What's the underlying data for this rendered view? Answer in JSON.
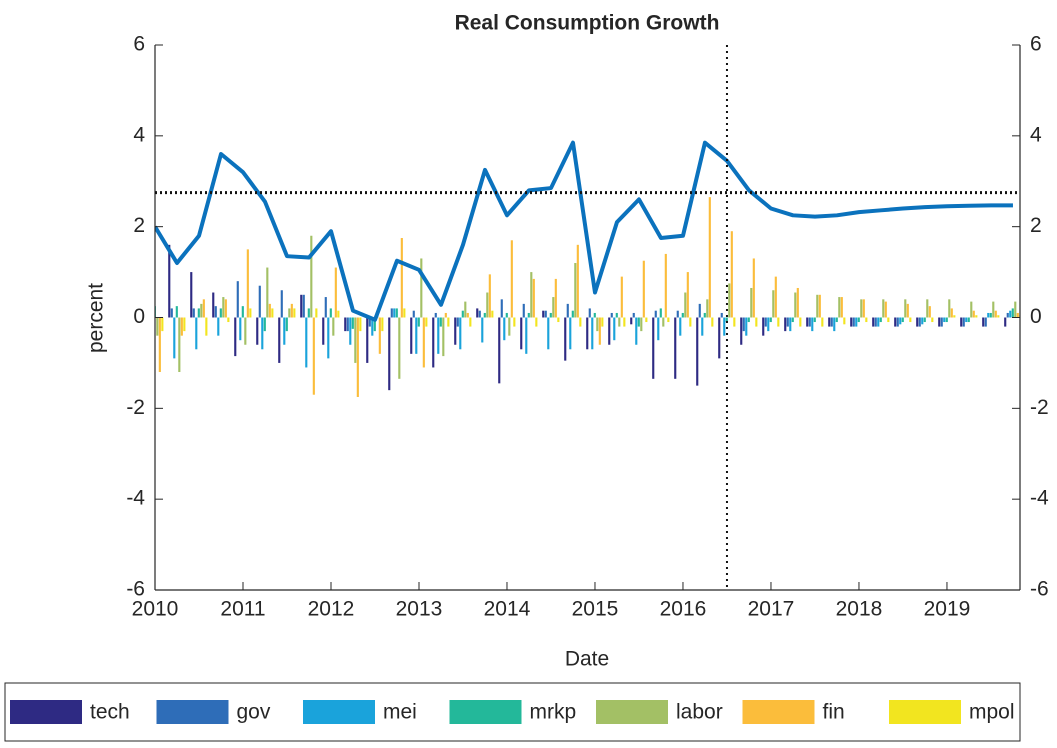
{
  "chart_data": {
    "type": "bar-line",
    "title": "Real Consumption Growth",
    "xlabel": "Date",
    "ylabel": "percent",
    "x": [
      2010,
      2010.25,
      2010.5,
      2010.75,
      2011,
      2011.25,
      2011.5,
      2011.75,
      2012,
      2012.25,
      2012.5,
      2012.75,
      2013,
      2013.25,
      2013.5,
      2013.75,
      2014,
      2014.25,
      2014.5,
      2014.75,
      2015,
      2015.25,
      2015.5,
      2015.75,
      2016,
      2016.25,
      2016.5,
      2016.75,
      2017,
      2017.25,
      2017.5,
      2017.75,
      2018,
      2018.25,
      2018.5,
      2018.75,
      2019,
      2019.25,
      2019.5,
      2019.75
    ],
    "series": [
      {
        "name": "tech",
        "color": "#2e2a83",
        "values": [
          -0.5,
          1.6,
          1.0,
          0.55,
          -0.85,
          -0.6,
          -1.0,
          0.5,
          -0.6,
          -0.3,
          -1.0,
          -1.6,
          -0.8,
          -1.1,
          -0.6,
          0.2,
          -1.45,
          -0.7,
          0.15,
          -0.95,
          -0.7,
          -0.6,
          -0.15,
          -1.35,
          -1.35,
          -1.5,
          -0.9,
          -0.6,
          -0.4,
          -0.3,
          -0.2,
          -0.2,
          -0.2,
          -0.2,
          -0.2,
          -0.2,
          -0.2,
          -0.2,
          -0.2,
          -0.2
        ]
      },
      {
        "name": "gov",
        "color": "#2e6db8",
        "values": [
          -0.3,
          0.2,
          0.2,
          0.25,
          0.8,
          0.7,
          0.6,
          0.5,
          0.45,
          -0.3,
          -0.2,
          0.2,
          0.15,
          0.1,
          -0.2,
          0.15,
          0.4,
          0.3,
          0.15,
          0.3,
          0.2,
          0.1,
          0.1,
          0.15,
          0.15,
          0.3,
          0.1,
          -0.3,
          -0.2,
          -0.2,
          -0.2,
          -0.2,
          -0.2,
          -0.2,
          -0.2,
          -0.2,
          -0.2,
          -0.2,
          -0.2,
          0.1
        ]
      },
      {
        "name": "mei",
        "color": "#1aa3db",
        "values": [
          -0.9,
          -0.9,
          -0.7,
          -0.4,
          -0.5,
          -0.7,
          -0.6,
          -1.1,
          -0.9,
          -0.6,
          -0.4,
          0.2,
          -0.8,
          -0.8,
          -0.7,
          -0.55,
          -0.5,
          -0.8,
          -0.7,
          -0.7,
          -0.7,
          -0.5,
          -0.6,
          -0.5,
          -0.4,
          -0.4,
          -0.4,
          -0.4,
          -0.3,
          -0.3,
          -0.3,
          -0.3,
          -0.2,
          -0.2,
          -0.15,
          -0.15,
          -0.1,
          -0.1,
          0.1,
          0.15
        ]
      },
      {
        "name": "mrkp",
        "color": "#23b89a",
        "values": [
          0.25,
          0.25,
          0.2,
          0.2,
          0.25,
          -0.3,
          -0.3,
          0.2,
          0.2,
          -0.25,
          -0.3,
          0.2,
          -0.2,
          -0.2,
          0.15,
          0.1,
          0.1,
          0.1,
          0.1,
          0.15,
          0.1,
          0.1,
          -0.2,
          0.2,
          0.1,
          0.1,
          -0.1,
          -0.1,
          -0.1,
          -0.1,
          -0.1,
          -0.1,
          -0.1,
          -0.1,
          -0.1,
          -0.1,
          -0.1,
          -0.1,
          0.1,
          0.2
        ]
      },
      {
        "name": "labor",
        "color": "#a3c065",
        "values": [
          -0.4,
          -1.2,
          0.3,
          0.45,
          -0.6,
          1.1,
          0.2,
          1.8,
          -0.4,
          -1.0,
          0.1,
          -1.35,
          1.3,
          -0.85,
          0.35,
          0.55,
          -0.4,
          1.0,
          0.45,
          1.2,
          -0.3,
          -0.2,
          -0.3,
          -0.2,
          0.55,
          0.4,
          0.75,
          0.65,
          0.6,
          0.55,
          0.5,
          0.45,
          0.4,
          0.4,
          0.4,
          0.4,
          0.4,
          0.35,
          0.35,
          0.35
        ]
      },
      {
        "name": "fin",
        "color": "#fbbd3b",
        "values": [
          -1.2,
          -0.4,
          0.4,
          0.4,
          1.5,
          0.3,
          0.3,
          -1.7,
          1.1,
          -1.75,
          -0.8,
          1.75,
          -1.1,
          0.1,
          0.1,
          0.95,
          1.7,
          0.85,
          0.85,
          1.6,
          -0.6,
          0.9,
          1.25,
          1.4,
          1.0,
          2.65,
          1.9,
          1.3,
          0.9,
          0.65,
          0.5,
          0.45,
          0.4,
          0.35,
          0.3,
          0.25,
          0.2,
          0.15,
          0.15,
          0.1
        ]
      },
      {
        "name": "mpol",
        "color": "#f2e51f",
        "values": [
          -0.3,
          -0.3,
          -0.4,
          -0.1,
          0.2,
          0.2,
          0.2,
          0.2,
          0.15,
          -0.3,
          -0.3,
          0.2,
          -0.2,
          -0.2,
          -0.2,
          0.15,
          -0.2,
          -0.2,
          -0.1,
          -0.2,
          -0.2,
          -0.2,
          -0.1,
          -0.1,
          -0.2,
          -0.2,
          -0.2,
          -0.2,
          -0.2,
          -0.2,
          -0.2,
          -0.15,
          -0.1,
          -0.1,
          -0.1,
          -0.1,
          0.05,
          0.05,
          0.05,
          0.05
        ]
      }
    ],
    "line": {
      "color": "#0b72bd",
      "values": [
        2.0,
        1.2,
        1.8,
        3.6,
        3.2,
        2.55,
        1.35,
        1.32,
        1.9,
        0.15,
        -0.05,
        1.25,
        1.05,
        0.28,
        1.6,
        3.25,
        2.25,
        2.8,
        2.85,
        3.85,
        0.55,
        2.1,
        2.6,
        1.75,
        1.8,
        3.85,
        3.45,
        2.8,
        2.4,
        2.25,
        2.22,
        2.25,
        2.32,
        2.36,
        2.4,
        2.43,
        2.45,
        2.46,
        2.47,
        2.47
      ]
    },
    "reference_lines": {
      "y": 2.75,
      "x": 2016.5
    },
    "xlim": [
      2010,
      2019.83
    ],
    "xticks": [
      2010,
      2011,
      2012,
      2013,
      2014,
      2015,
      2016,
      2017,
      2018,
      2019
    ],
    "ylim": [
      -6,
      6
    ],
    "yticks": [
      -6,
      -4,
      -2,
      0,
      2,
      4,
      6
    ],
    "y2lim": [
      -6,
      6
    ],
    "y2ticks": [
      -6,
      -4,
      -2,
      0,
      2,
      4,
      6
    ],
    "legend": "bottom"
  }
}
